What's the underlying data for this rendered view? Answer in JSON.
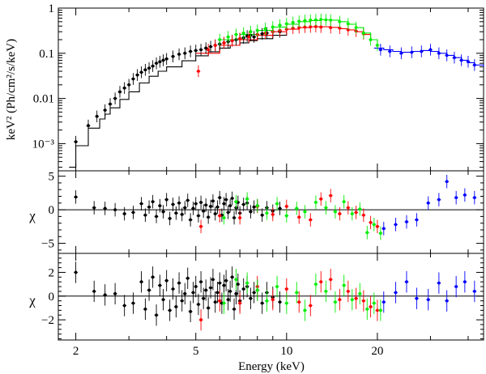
{
  "chart_data": {
    "type": "scatter",
    "title": "",
    "xlabel": "Energy (keV)",
    "xscale": "log",
    "xlim": [
      1.75,
      45
    ],
    "x_tick_labels": [
      "2",
      "5",
      "10",
      "20"
    ],
    "x_tick_values": [
      2,
      5,
      10,
      20
    ],
    "colors": {
      "series_1": "#000000",
      "series_2": "#ff0000",
      "series_3": "#00ee00",
      "series_4": "#0000ff"
    },
    "panels": [
      {
        "name": "spectrum",
        "ylabel": "keV² (Ph/cm²/s/keV)",
        "yscale": "log",
        "ylim": [
          0.00025,
          1.0
        ],
        "y_tick_labels": [
          "1",
          "0.1",
          "0.01",
          "10⁻³"
        ],
        "y_tick_values": [
          1,
          0.1,
          0.01,
          0.001
        ],
        "series": [
          {
            "name": "series_1",
            "color": "#000000",
            "x": [
              2.0,
              2.2,
              2.35,
              2.5,
              2.6,
              2.7,
              2.8,
              2.9,
              3.0,
              3.1,
              3.2,
              3.3,
              3.4,
              3.5,
              3.6,
              3.7,
              3.8,
              3.9,
              4.0,
              4.2,
              4.4,
              4.6,
              4.8,
              5.0,
              5.2,
              5.4,
              5.6,
              5.8,
              6.0,
              6.2,
              6.4,
              6.6,
              6.8,
              7.0,
              7.2,
              7.4,
              7.6,
              7.8,
              8.0,
              8.3,
              8.6,
              9.0,
              9.5
            ],
            "y": [
              0.0011,
              0.0025,
              0.004,
              0.0055,
              0.0075,
              0.01,
              0.014,
              0.017,
              0.02,
              0.027,
              0.033,
              0.038,
              0.043,
              0.047,
              0.052,
              0.06,
              0.065,
              0.07,
              0.075,
              0.085,
              0.095,
              0.1,
              0.11,
              0.115,
              0.12,
              0.13,
              0.14,
              0.15,
              0.16,
              0.17,
              0.18,
              0.19,
              0.2,
              0.21,
              0.22,
              0.24,
              0.25,
              0.23,
              0.26,
              0.27,
              0.28,
              0.3,
              0.3
            ]
          },
          {
            "name": "series_2",
            "color": "#ff0000",
            "x": [
              5.1,
              5.5,
              5.8,
              6.2,
              6.6,
              7.0,
              7.5,
              8.0,
              8.5,
              9.0,
              9.5,
              10.0,
              10.5,
              11.0,
              11.5,
              12.0,
              12.5,
              13.0,
              14.0,
              15.0,
              16.0,
              17.0,
              18.0
            ],
            "y": [
              0.04,
              0.12,
              0.15,
              0.17,
              0.19,
              0.21,
              0.23,
              0.26,
              0.28,
              0.3,
              0.32,
              0.34,
              0.36,
              0.37,
              0.38,
              0.385,
              0.39,
              0.38,
              0.37,
              0.36,
              0.33,
              0.31,
              0.27
            ]
          },
          {
            "name": "series_3",
            "color": "#00ee00",
            "x": [
              6.0,
              6.4,
              6.8,
              7.2,
              7.6,
              8.0,
              8.5,
              9.0,
              9.5,
              10.0,
              10.5,
              11.0,
              11.5,
              12.0,
              12.5,
              13.0,
              13.5,
              14.0,
              15.0,
              16.0,
              17.0,
              18.0,
              19.0,
              20.0
            ],
            "y": [
              0.2,
              0.23,
              0.26,
              0.28,
              0.3,
              0.32,
              0.35,
              0.38,
              0.42,
              0.45,
              0.48,
              0.51,
              0.53,
              0.54,
              0.55,
              0.56,
              0.55,
              0.54,
              0.5,
              0.45,
              0.37,
              0.28,
              0.2,
              0.15
            ]
          },
          {
            "name": "series_4",
            "color": "#0000ff",
            "x": [
              20.5,
              22.0,
              24.0,
              26.0,
              28.0,
              30.0,
              32.0,
              34.0,
              36.0,
              38.0,
              40.0,
              42.0
            ],
            "y": [
              0.12,
              0.11,
              0.1,
              0.105,
              0.11,
              0.12,
              0.1,
              0.09,
              0.08,
              0.07,
              0.065,
              0.055
            ]
          }
        ],
        "model": [
          {
            "name": "model_black",
            "color": "#000000",
            "x": [
              1.9,
              2.0,
              2.1,
              2.2,
              2.3,
              2.4,
              2.5,
              2.6,
              2.8,
              3.0,
              3.25,
              3.5,
              3.75,
              4.0,
              4.5,
              5.0,
              5.5,
              6.0,
              6.5,
              7.0,
              7.5,
              8.0,
              9.0,
              10.0
            ],
            "y": [
              0.0003,
              0.0009,
              0.0009,
              0.0022,
              0.0022,
              0.0035,
              0.0045,
              0.0062,
              0.0095,
              0.014,
              0.022,
              0.031,
              0.04,
              0.05,
              0.068,
              0.088,
              0.108,
              0.13,
              0.15,
              0.17,
              0.19,
              0.21,
              0.25,
              0.29
            ]
          },
          {
            "name": "model_red",
            "color": "#ff0000",
            "x": [
              5.0,
              6.0,
              7.0,
              8.0,
              9.0,
              10.0,
              11.0,
              12.0,
              13.0,
              14.0,
              15.0,
              16.0,
              17.0,
              18.0,
              19.0
            ],
            "y": [
              0.1,
              0.15,
              0.2,
              0.25,
              0.3,
              0.34,
              0.37,
              0.385,
              0.385,
              0.375,
              0.35,
              0.33,
              0.3,
              0.26,
              0.21
            ]
          },
          {
            "name": "model_green",
            "color": "#00ee00",
            "x": [
              6.0,
              7.0,
              8.0,
              9.0,
              10.0,
              11.0,
              12.0,
              13.0,
              14.0,
              15.0,
              16.0,
              17.0,
              18.0,
              19.0,
              20.0
            ],
            "y": [
              0.2,
              0.26,
              0.32,
              0.38,
              0.44,
              0.5,
              0.53,
              0.55,
              0.54,
              0.5,
              0.44,
              0.37,
              0.28,
              0.2,
              0.15
            ]
          },
          {
            "name": "model_blue",
            "color": "#0000ff",
            "x": [
              19.5,
              21.0,
              22.5,
              24.0,
              26.0,
              28.0,
              30.0,
              32.0,
              34.0,
              36.0,
              38.0,
              40.0,
              42.0,
              45.0
            ],
            "y": [
              0.13,
              0.12,
              0.11,
              0.105,
              0.11,
              0.115,
              0.11,
              0.1,
              0.09,
              0.08,
              0.07,
              0.062,
              0.055,
              0.05
            ]
          }
        ]
      },
      {
        "name": "residuals-1",
        "ylabel": "χ",
        "yscale": "linear",
        "ylim": [
          -6.5,
          5.8
        ],
        "y_tick_labels": [
          "5",
          "0",
          "−5"
        ],
        "y_tick_values": [
          5,
          0,
          -5
        ],
        "series": [
          {
            "name": "series_1",
            "color": "#000000",
            "x": [
              2.0,
              2.3,
              2.5,
              2.7,
              2.9,
              3.1,
              3.3,
              3.4,
              3.5,
              3.6,
              3.7,
              3.8,
              3.9,
              4.0,
              4.1,
              4.2,
              4.3,
              4.4,
              4.5,
              4.6,
              4.7,
              4.8,
              4.9,
              5.0,
              5.1,
              5.2,
              5.3,
              5.4,
              5.5,
              5.6,
              5.7,
              5.8,
              5.9,
              6.0,
              6.1,
              6.2,
              6.3,
              6.4,
              6.5,
              6.6,
              6.7,
              6.8,
              6.9,
              7.0,
              7.2,
              7.4,
              7.6,
              7.8,
              8.0,
              8.3,
              8.6,
              9.0,
              9.5
            ],
            "y": [
              1.9,
              0.3,
              0.2,
              0.0,
              -0.6,
              -0.4,
              0.9,
              -0.8,
              0.4,
              1.2,
              -1.0,
              0.6,
              -0.3,
              1.5,
              -1.3,
              0.8,
              -0.5,
              1.0,
              -0.7,
              0.3,
              1.4,
              -1.5,
              0.2,
              0.9,
              -0.9,
              1.1,
              -0.2,
              0.7,
              -1.1,
              0.5,
              1.3,
              -0.6,
              0.4,
              1.8,
              -0.8,
              0.9,
              1.5,
              -0.4,
              0.6,
              1.7,
              -1.2,
              0.3,
              1.1,
              -0.5,
              0.8,
              1.0,
              -0.3,
              0.4,
              0.6,
              -0.8,
              0.3,
              -0.2,
              0.2
            ]
          },
          {
            "name": "series_2",
            "color": "#ff0000",
            "x": [
              5.2,
              6.0,
              7.0,
              8.0,
              9.0,
              10.0,
              11.0,
              12.0,
              13.0,
              14.0,
              15.0,
              16.0,
              17.0,
              18.0,
              19.0,
              20.0
            ],
            "y": [
              -2.5,
              -0.9,
              -1.2,
              0.5,
              -0.7,
              0.5,
              -1.1,
              -1.5,
              1.6,
              2.1,
              -0.6,
              0.3,
              -0.4,
              -0.8,
              -1.9,
              -2.5
            ]
          },
          {
            "name": "series_3",
            "color": "#00ee00",
            "x": [
              6.2,
              6.8,
              7.4,
              8.0,
              8.6,
              9.3,
              10.0,
              10.8,
              11.5,
              12.5,
              13.5,
              14.5,
              15.5,
              16.5,
              17.5,
              18.5,
              19.5,
              20.5
            ],
            "y": [
              -1.2,
              1.2,
              1.6,
              0.6,
              -0.5,
              0.9,
              -0.9,
              0.2,
              -0.3,
              1.1,
              0.3,
              -0.3,
              1.2,
              -0.6,
              0.1,
              -3.4,
              -2.2,
              -3.5
            ]
          },
          {
            "name": "series_4",
            "color": "#0000ff",
            "x": [
              21.0,
              23.0,
              25.0,
              27.0,
              29.5,
              32.0,
              34.0,
              36.5,
              39.0,
              42.0
            ],
            "y": [
              -2.8,
              -2.2,
              -1.8,
              -1.5,
              1.0,
              1.5,
              4.2,
              1.8,
              2.2,
              1.8
            ]
          }
        ]
      },
      {
        "name": "residuals-2",
        "ylabel": "χ",
        "yscale": "linear",
        "ylim": [
          -3.7,
          3.6
        ],
        "y_tick_labels": [
          "2",
          "0",
          "−2"
        ],
        "y_tick_values": [
          2,
          0,
          -2
        ],
        "series": [
          {
            "name": "series_1",
            "color": "#000000",
            "x": [
              2.0,
              2.3,
              2.5,
              2.7,
              2.9,
              3.1,
              3.3,
              3.4,
              3.5,
              3.6,
              3.7,
              3.8,
              3.9,
              4.0,
              4.1,
              4.2,
              4.3,
              4.4,
              4.5,
              4.6,
              4.7,
              4.8,
              4.9,
              5.0,
              5.1,
              5.2,
              5.3,
              5.4,
              5.5,
              5.6,
              5.7,
              5.8,
              5.9,
              6.0,
              6.1,
              6.2,
              6.3,
              6.4,
              6.5,
              6.6,
              6.7,
              6.8,
              6.9,
              7.0,
              7.2,
              7.4,
              7.6,
              7.8,
              8.0,
              8.3,
              8.6,
              9.0,
              9.5
            ],
            "y": [
              2.0,
              0.4,
              0.1,
              0.2,
              -0.8,
              -0.6,
              1.2,
              -1.1,
              0.5,
              1.6,
              -1.6,
              0.9,
              -0.3,
              1.3,
              -1.2,
              0.6,
              -0.9,
              1.1,
              -0.4,
              0.2,
              1.5,
              -1.3,
              0.3,
              0.8,
              -0.7,
              1.2,
              -0.2,
              0.5,
              -1.0,
              0.7,
              1.4,
              -0.5,
              0.3,
              1.1,
              -0.6,
              0.9,
              1.3,
              -0.3,
              0.4,
              1.6,
              -1.1,
              0.2,
              1.0,
              -0.4,
              0.6,
              0.8,
              -0.2,
              0.3,
              0.5,
              -0.6,
              0.3,
              -0.1,
              -0.5
            ]
          },
          {
            "name": "series_2",
            "color": "#ff0000",
            "x": [
              5.2,
              6.0,
              7.0,
              8.0,
              9.0,
              10.0,
              11.0,
              12.0,
              13.0,
              14.0,
              15.0,
              16.0,
              17.0,
              18.0,
              19.0,
              20.0
            ],
            "y": [
              -2.0,
              -0.4,
              -0.6,
              0.8,
              -0.3,
              0.6,
              -0.5,
              -0.8,
              1.2,
              1.4,
              -0.3,
              0.4,
              -0.2,
              -0.4,
              -0.9,
              -1.2
            ]
          },
          {
            "name": "series_3",
            "color": "#00ee00",
            "x": [
              6.2,
              6.8,
              7.4,
              8.0,
              8.6,
              9.3,
              10.0,
              10.8,
              11.5,
              12.5,
              13.5,
              14.5,
              15.5,
              16.5,
              17.5,
              18.5,
              19.5,
              20.5
            ],
            "y": [
              -0.6,
              1.4,
              1.1,
              0.5,
              -0.4,
              0.8,
              -0.6,
              0.3,
              -1.2,
              1.0,
              0.4,
              -0.5,
              0.9,
              -0.3,
              0.2,
              -1.1,
              -0.6,
              -1.2
            ]
          },
          {
            "name": "series_4",
            "color": "#0000ff",
            "x": [
              21.0,
              23.0,
              25.0,
              27.0,
              29.5,
              32.0,
              34.0,
              36.5,
              39.0,
              42.0
            ],
            "y": [
              -0.5,
              0.3,
              1.2,
              -0.2,
              -0.3,
              1.1,
              -0.4,
              0.8,
              1.2,
              0.4
            ]
          }
        ]
      }
    ]
  }
}
